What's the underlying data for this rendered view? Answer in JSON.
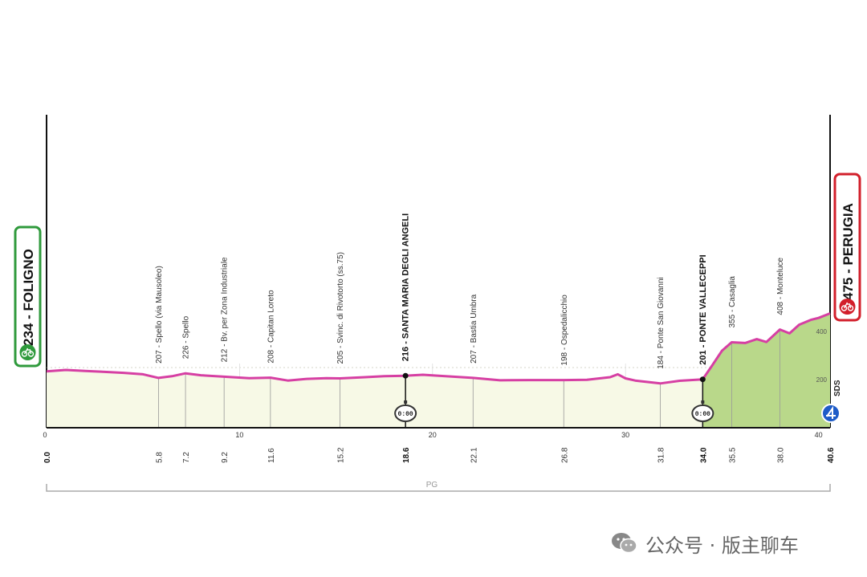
{
  "chart_data": {
    "type": "area",
    "title": "",
    "xlabel": "",
    "ylabel": "",
    "xlim": [
      0,
      40.6
    ],
    "ylim": [
      0,
      500
    ],
    "x_ticks": [
      0,
      10,
      20,
      30,
      40
    ],
    "x_tick_labels": [
      "0",
      "10",
      "20",
      "30",
      "40"
    ],
    "y_ticks": [
      200,
      400
    ],
    "y_tick_labels": [
      "200",
      "400"
    ],
    "start": {
      "label": "234 - FOLIGNO",
      "km": 0,
      "alt": 234
    },
    "finish": {
      "label": "475 - PERUGIA",
      "km": 40.6,
      "alt": 475
    },
    "finish_km_label": "40.6",
    "start_km_label": "0.0",
    "waypoints": [
      {
        "km": 5.8,
        "km_label": "5.8",
        "alt": 207,
        "label": "207 - Spello (via Mausoleo)",
        "bold": false
      },
      {
        "km": 7.2,
        "km_label": "7.2",
        "alt": 226,
        "label": "226 - Spello",
        "bold": false
      },
      {
        "km": 9.2,
        "km_label": "9.2",
        "alt": 212,
        "label": "212 - Bv. per Zona Industriale",
        "bold": false
      },
      {
        "km": 11.6,
        "km_label": "11.6",
        "alt": 208,
        "label": "208 - Capitan Loreto",
        "bold": false
      },
      {
        "km": 15.2,
        "km_label": "15.2",
        "alt": 205,
        "label": "205 - Svinc. di Rivotorto (ss.75)",
        "bold": false
      },
      {
        "km": 18.6,
        "km_label": "18.6",
        "alt": 216,
        "label": "216 - SANTA MARIA DEGLI ANGELI",
        "bold": true
      },
      {
        "km": 22.1,
        "km_label": "22.1",
        "alt": 207,
        "label": "207 - Bastia Umbra",
        "bold": false
      },
      {
        "km": 26.8,
        "km_label": "26.8",
        "alt": 198,
        "label": "198 - Ospedalicchio",
        "bold": false
      },
      {
        "km": 31.8,
        "km_label": "31.8",
        "alt": 184,
        "label": "184 - Ponte San Giovanni",
        "bold": false
      },
      {
        "km": 34.0,
        "km_label": "34.0",
        "alt": 201,
        "label": "201 - PONTE VALLECEPPI",
        "bold": true
      },
      {
        "km": 35.5,
        "km_label": "35.5",
        "alt": 355,
        "label": "355 - Casaglia",
        "bold": false
      },
      {
        "km": 38.0,
        "km_label": "38.0",
        "alt": 408,
        "label": "408 - Monteluce",
        "bold": false
      }
    ],
    "profile": [
      [
        0,
        234
      ],
      [
        1,
        240
      ],
      [
        2,
        236
      ],
      [
        3,
        232
      ],
      [
        4,
        228
      ],
      [
        5,
        222
      ],
      [
        5.8,
        207
      ],
      [
        6.5,
        214
      ],
      [
        7.2,
        226
      ],
      [
        8.0,
        218
      ],
      [
        9.2,
        212
      ],
      [
        10.5,
        206
      ],
      [
        11.6,
        208
      ],
      [
        12.5,
        196
      ],
      [
        13.5,
        203
      ],
      [
        14.5,
        206
      ],
      [
        15.2,
        205
      ],
      [
        16.5,
        210
      ],
      [
        17.5,
        214
      ],
      [
        18.6,
        216
      ],
      [
        19.5,
        220
      ],
      [
        20.5,
        215
      ],
      [
        22.1,
        207
      ],
      [
        23.5,
        197
      ],
      [
        25,
        198
      ],
      [
        26.8,
        198
      ],
      [
        28,
        199
      ],
      [
        29.2,
        210
      ],
      [
        29.6,
        222
      ],
      [
        30.0,
        205
      ],
      [
        30.5,
        196
      ],
      [
        31.8,
        184
      ],
      [
        32.8,
        195
      ],
      [
        34.0,
        201
      ],
      [
        34.5,
        260
      ],
      [
        35.0,
        320
      ],
      [
        35.5,
        355
      ],
      [
        36.2,
        352
      ],
      [
        36.8,
        368
      ],
      [
        37.3,
        356
      ],
      [
        38.0,
        408
      ],
      [
        38.5,
        392
      ],
      [
        39.0,
        428
      ],
      [
        39.6,
        448
      ],
      [
        40.0,
        456
      ],
      [
        40.6,
        475
      ]
    ],
    "climb_start_km": 34.0,
    "timers": [
      {
        "km": 18.6,
        "label": "0:00"
      },
      {
        "km": 34.0,
        "label": "0:00"
      }
    ],
    "region_label": "PG",
    "sds_label": "SDS",
    "colors": {
      "profile_line": "#d63fa3",
      "flat_fill": "#f7f9e6",
      "climb_fill": "#b9d88a",
      "start_badge": "#2f9a3c",
      "finish_badge": "#d21f2b"
    }
  },
  "watermark": {
    "text": "公众号 · 版主聊车",
    "icon": "wechat-icon"
  }
}
